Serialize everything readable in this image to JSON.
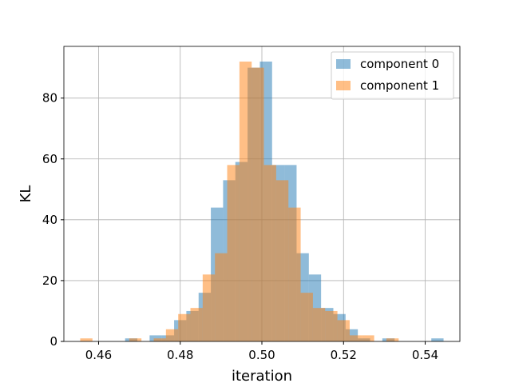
{
  "chart_data": {
    "type": "bar",
    "subtype": "overlapping histogram",
    "title": "",
    "xlabel": "iteration",
    "ylabel": "KL",
    "xlim": [
      0.4515,
      0.5485
    ],
    "ylim": [
      0,
      97
    ],
    "xticks": [
      "0.46",
      "0.48",
      "0.50",
      "0.52",
      "0.54"
    ],
    "xtick_values": [
      0.46,
      0.48,
      0.5,
      0.52,
      0.54
    ],
    "yticks": [
      "0",
      "20",
      "40",
      "60",
      "80"
    ],
    "ytick_values": [
      0,
      20,
      40,
      60,
      80
    ],
    "grid": true,
    "legend_position": "top-right",
    "series": [
      {
        "name": "component 0",
        "color": "#1f77b4",
        "opacity": 0.5,
        "bin_edges": [
          0.4665,
          0.4695,
          0.4725,
          0.4755,
          0.4785,
          0.4815,
          0.4845,
          0.4875,
          0.4905,
          0.4935,
          0.4965,
          0.4995,
          0.5025,
          0.5055,
          0.5085,
          0.5115,
          0.5145,
          0.5175,
          0.5205,
          0.5235,
          0.5265,
          0.5295,
          0.5325,
          0.5355,
          0.5385,
          0.5415,
          0.5445
        ],
        "counts": [
          1,
          0,
          2,
          2,
          7,
          10,
          16,
          44,
          53,
          59,
          90,
          92,
          58,
          58,
          29,
          22,
          11,
          9,
          4,
          1,
          0,
          1,
          0,
          0,
          0,
          1
        ]
      },
      {
        "name": "component 1",
        "color": "#ff7f0e",
        "opacity": 0.5,
        "bin_edges": [
          0.4555,
          0.4585,
          0.4615,
          0.4645,
          0.4675,
          0.4705,
          0.4735,
          0.4765,
          0.4795,
          0.4825,
          0.4855,
          0.4885,
          0.4915,
          0.4945,
          0.4975,
          0.5005,
          0.5035,
          0.5065,
          0.5095,
          0.5125,
          0.5155,
          0.5185,
          0.5215,
          0.5245,
          0.5275,
          0.5305,
          0.5335
        ],
        "counts": [
          1,
          0,
          0,
          0,
          1,
          0,
          1,
          4,
          9,
          11,
          22,
          29,
          58,
          92,
          90,
          58,
          53,
          44,
          16,
          11,
          10,
          7,
          2,
          2,
          0,
          1
        ]
      }
    ]
  }
}
